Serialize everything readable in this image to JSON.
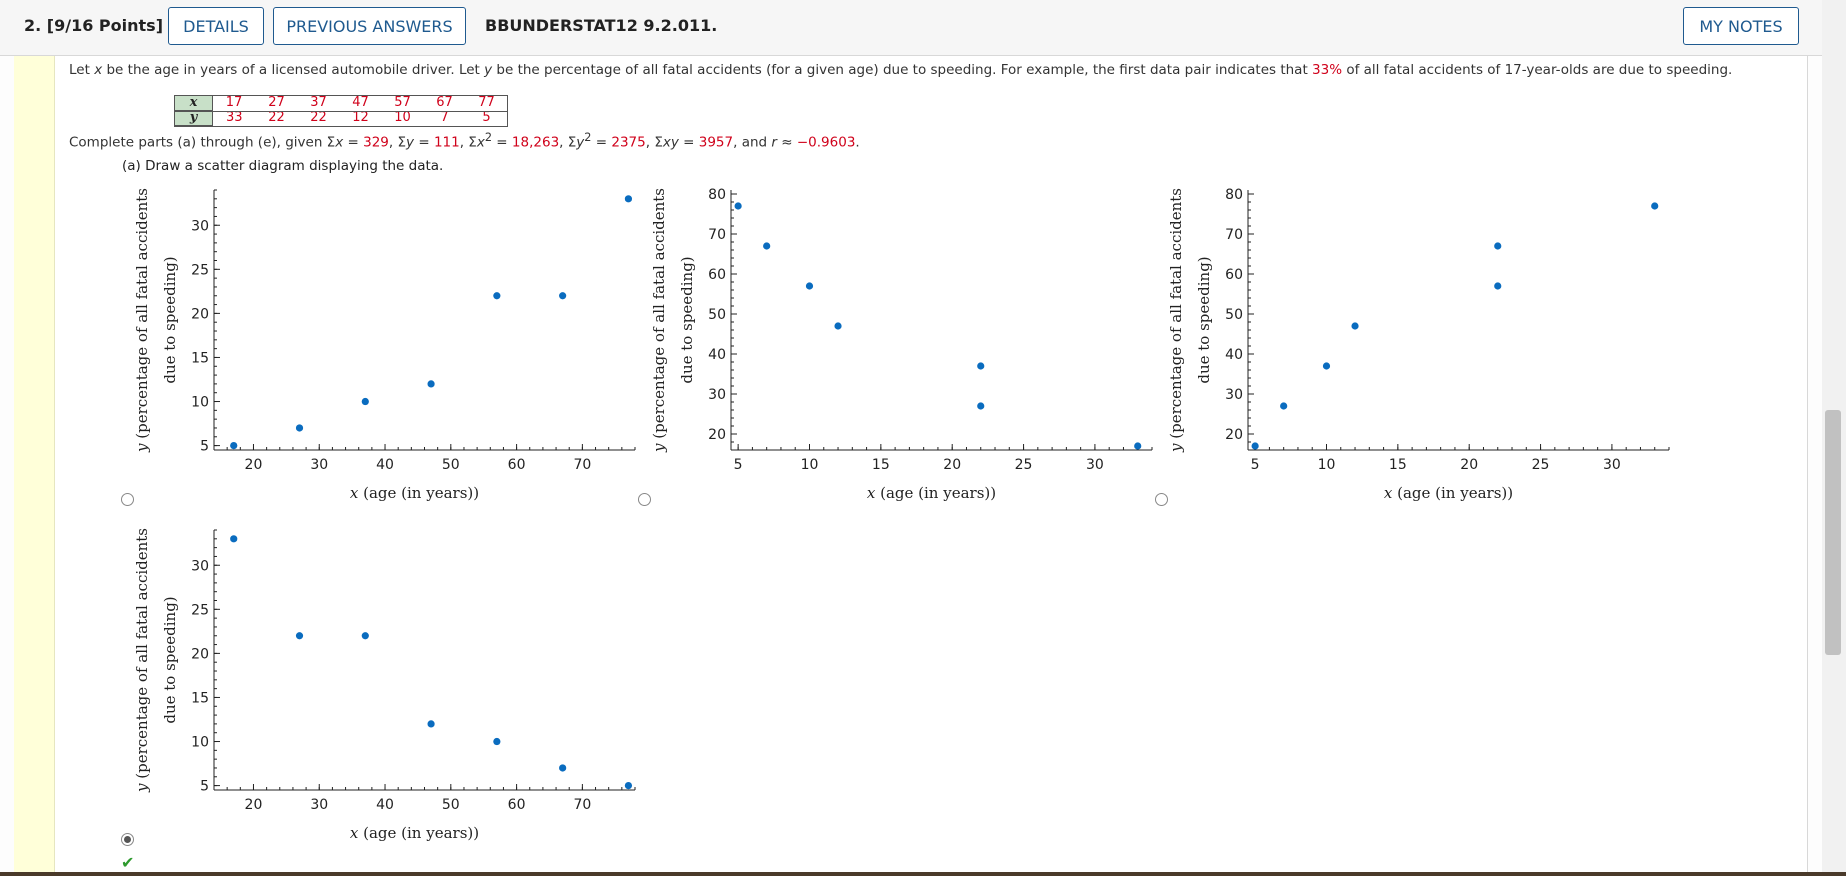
{
  "header": {
    "question_number": "2.",
    "points": "[9/16 Points]",
    "details_label": "DETAILS",
    "previous_answers_label": "PREVIOUS ANSWERS",
    "question_code": "BBUNDERSTAT12 9.2.011.",
    "my_notes_label": "MY NOTES"
  },
  "prompt": {
    "p1": "Let ",
    "x1": "x",
    "p2": " be the age in years of a licensed automobile driver. Let ",
    "y1": "y",
    "p3": " be the percentage of all fatal accidents (for a given age) due to speeding. For example, the first data pair indicates that ",
    "pct": "33%",
    "p4": " of all fatal accidents of 17-year-olds are due to speeding."
  },
  "data_table": {
    "x_header": "x",
    "y_header": "y",
    "x": [
      "17",
      "27",
      "37",
      "47",
      "57",
      "67",
      "77"
    ],
    "y": [
      "33",
      "22",
      "22",
      "12",
      "10",
      "7",
      "5"
    ]
  },
  "complete": {
    "c1": "Complete parts (a) through (e), given Σ",
    "sx": "x",
    "c2": " = ",
    "sx_val": "329",
    "c3": ", Σ",
    "sy": "y",
    "c4": " = ",
    "sy_val": "111",
    "c5": ", Σ",
    "sx2": "x",
    "c6": " = ",
    "sx2_val": "18,263",
    "c7": ", Σ",
    "sy2": "y",
    "c8": " = ",
    "sy2_val": "2375",
    "c9": ", Σ",
    "sxy": "xy",
    "c10": " = ",
    "sxy_val": "3957",
    "c11": ", and ",
    "r": "r",
    "c12": " ≈ ",
    "r_val": "−0.9603",
    "c13": "."
  },
  "part_a": "(a) Draw a scatter diagram displaying the data.",
  "options": [
    {
      "selected": false
    },
    {
      "selected": false
    },
    {
      "selected": false
    },
    {
      "selected": true,
      "correct": true
    }
  ],
  "chart_data": [
    {
      "type": "scatter",
      "xlabel_var": "x",
      "xlabel": " (age (in years))",
      "ylabel_var": "y",
      "ylabel1": " (percentage of all fatal accidents",
      "ylabel2": "due to speeding)",
      "xlim": [
        14,
        78
      ],
      "ylim": [
        4.5,
        34
      ],
      "xticks": [
        20,
        30,
        40,
        50,
        60,
        70
      ],
      "yticks": [
        5,
        10,
        15,
        20,
        25,
        30
      ],
      "points": [
        [
          17,
          5
        ],
        [
          27,
          7
        ],
        [
          37,
          10
        ],
        [
          47,
          12
        ],
        [
          57,
          22
        ],
        [
          67,
          22
        ],
        [
          77,
          33
        ]
      ],
      "marker_color": "#0a6cbf"
    },
    {
      "type": "scatter",
      "xlabel_var": "x",
      "xlabel": " (age (in years))",
      "ylabel_var": "y",
      "ylabel1": " (percentage of all fatal accidents",
      "ylabel2": "due to speeding)",
      "xlim": [
        4.5,
        34
      ],
      "ylim": [
        16,
        81
      ],
      "xticks": [
        5,
        10,
        15,
        20,
        25,
        30
      ],
      "yticks": [
        20,
        30,
        40,
        50,
        60,
        70,
        80
      ],
      "points": [
        [
          5,
          77
        ],
        [
          7,
          67
        ],
        [
          10,
          57
        ],
        [
          12,
          47
        ],
        [
          22,
          37
        ],
        [
          22,
          27
        ],
        [
          33,
          17
        ]
      ],
      "marker_color": "#0a6cbf"
    },
    {
      "type": "scatter",
      "xlabel_var": "x",
      "xlabel": " (age (in years))",
      "ylabel_var": "y",
      "ylabel1": " (percentage of all fatal accidents",
      "ylabel2": "due to speeding)",
      "xlim": [
        4.5,
        34
      ],
      "ylim": [
        16,
        81
      ],
      "xticks": [
        5,
        10,
        15,
        20,
        25,
        30
      ],
      "yticks": [
        20,
        30,
        40,
        50,
        60,
        70,
        80
      ],
      "points": [
        [
          5,
          17
        ],
        [
          7,
          27
        ],
        [
          10,
          37
        ],
        [
          12,
          47
        ],
        [
          22,
          57
        ],
        [
          22,
          67
        ],
        [
          33,
          77
        ]
      ],
      "marker_color": "#0a6cbf"
    },
    {
      "type": "scatter",
      "xlabel_var": "x",
      "xlabel": " (age (in years))",
      "ylabel_var": "y",
      "ylabel1": " (percentage of all fatal accidents",
      "ylabel2": "due to speeding)",
      "xlim": [
        14,
        78
      ],
      "ylim": [
        4.5,
        34
      ],
      "xticks": [
        20,
        30,
        40,
        50,
        60,
        70
      ],
      "yticks": [
        5,
        10,
        15,
        20,
        25,
        30
      ],
      "points": [
        [
          17,
          33
        ],
        [
          27,
          22
        ],
        [
          37,
          22
        ],
        [
          47,
          12
        ],
        [
          57,
          10
        ],
        [
          67,
          7
        ],
        [
          77,
          5
        ]
      ],
      "marker_color": "#0a6cbf"
    }
  ]
}
